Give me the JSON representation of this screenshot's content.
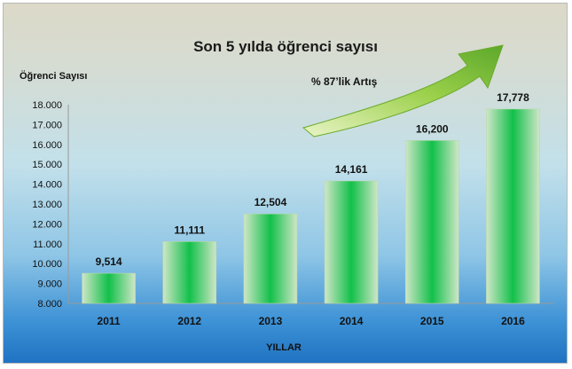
{
  "chart_data": {
    "type": "bar",
    "title": "Son 5 yılda öğrenci sayısı",
    "ylabel": "Öğrenci Sayısı",
    "xlabel": "YILLAR",
    "categories": [
      "2011",
      "2012",
      "2013",
      "2014",
      "2015",
      "2016"
    ],
    "values": [
      9514,
      11111,
      12504,
      14161,
      16200,
      17778
    ],
    "value_labels": [
      "9,514",
      "11,111",
      "12,504",
      "14,161",
      "16,200",
      "17,778"
    ],
    "ylim": [
      8000,
      18000
    ],
    "yticks": [
      8000,
      9000,
      10000,
      11000,
      12000,
      13000,
      14000,
      15000,
      16000,
      17000,
      18000
    ],
    "ytick_labels": [
      "8.000",
      "9.000",
      "10.000",
      "11.000",
      "12.000",
      "13.000",
      "14.000",
      "15.000",
      "16.000",
      "17.000",
      "18.000"
    ],
    "annotation": "% 87’lik Artış",
    "grid": false,
    "legend": "none",
    "colors": {
      "bar_edge": "#cfe6c7",
      "bar_center": "#12c04a",
      "arrow": "#7dc230"
    }
  }
}
